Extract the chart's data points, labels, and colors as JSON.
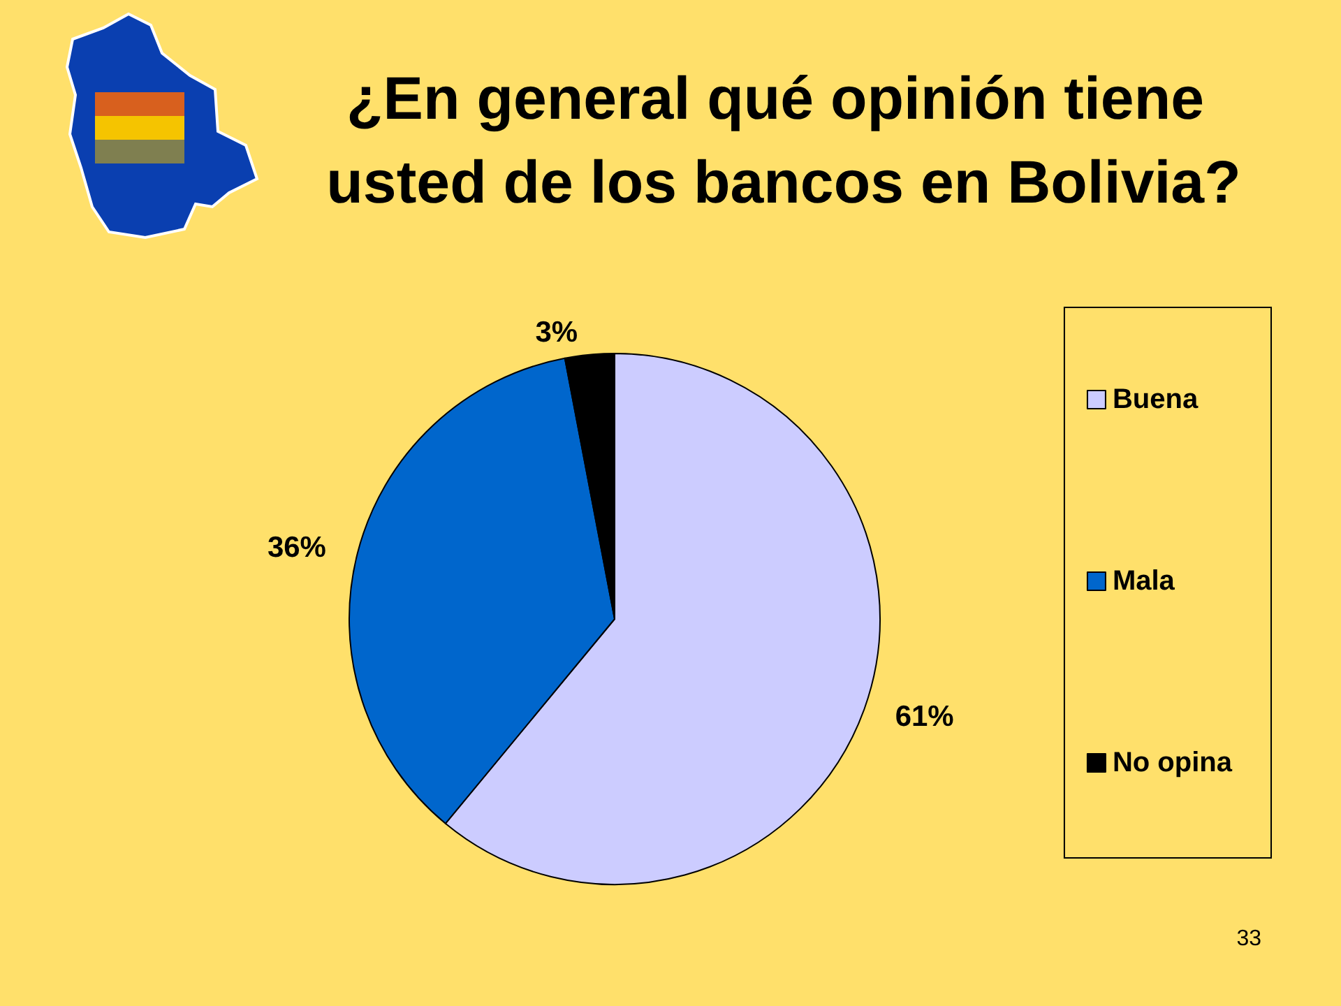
{
  "chart_data": {
    "type": "pie",
    "title": "¿En general qué opinión tiene usted de los bancos en Bolivia?",
    "categories": [
      "Buena",
      "Mala",
      "No opina"
    ],
    "values": [
      61,
      36,
      3
    ],
    "colors": [
      "#ccccff",
      "#0066cc",
      "#000000"
    ],
    "value_labels": [
      "61%",
      "36%",
      "3%"
    ],
    "legend": "right",
    "annotations": [
      "33"
    ]
  }
}
